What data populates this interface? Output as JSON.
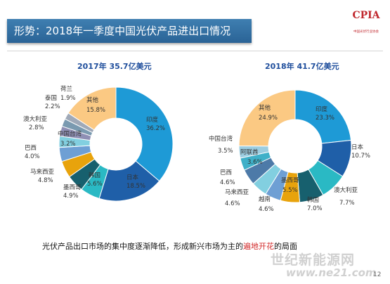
{
  "header": {
    "title": "形势：2018年一季度中国光伏产品进出口情况",
    "logo_text": "CPIA",
    "logo_subtitle": "中国光伏行业协会"
  },
  "chart_data": [
    {
      "type": "pie",
      "donut": true,
      "title": "2017年 35.7亿美元",
      "slices": [
        {
          "name": "印度",
          "value": 36.2,
          "label": "36.2%",
          "color": "#1e9ad6"
        },
        {
          "name": "日本",
          "value": 18.5,
          "label": "18.5%",
          "color": "#1f5fa8"
        },
        {
          "name": "韩国",
          "value": 5.6,
          "label": "5.6%",
          "color": "#2ab9c4"
        },
        {
          "name": "墨西哥",
          "value": 4.9,
          "label": "4.9%",
          "color": "#17606e"
        },
        {
          "name": "马来西亚",
          "value": 4.8,
          "label": "4.8%",
          "color": "#e8a30c"
        },
        {
          "name": "巴西",
          "value": 4.0,
          "label": "4.0%",
          "color": "#6e9fd4"
        },
        {
          "name": "中国台湾",
          "value": 3.2,
          "label": "3.2%",
          "color": "#82cfe0"
        },
        {
          "name": "澳大利亚",
          "value": 2.8,
          "label": "2.8%",
          "color": "#8f8fb4"
        },
        {
          "name": "泰国",
          "value": 2.2,
          "label": "2.2%",
          "color": "#7a9ab0"
        },
        {
          "name": "荷兰",
          "value": 1.9,
          "label": "1.9%",
          "color": "#9fa9b8"
        },
        {
          "name": "其他",
          "value": 15.8,
          "label": "15.8%",
          "color": "#fbc983"
        }
      ]
    },
    {
      "type": "pie",
      "donut": true,
      "title": "2018年 41.7亿美元",
      "slices": [
        {
          "name": "印度",
          "value": 23.3,
          "label": "23.3%",
          "color": "#1e9ad6"
        },
        {
          "name": "日本",
          "value": 10.7,
          "label": "10.7%",
          "color": "#1f5fa8"
        },
        {
          "name": "澳大利亚",
          "value": 7.7,
          "label": "7.7%",
          "color": "#2ab9c4"
        },
        {
          "name": "韩国",
          "value": 7.0,
          "label": "7.0%",
          "color": "#17606e"
        },
        {
          "name": "墨西哥",
          "value": 5.5,
          "label": "5.5%",
          "color": "#e8a30c"
        },
        {
          "name": "越南",
          "value": 4.6,
          "label": "4.6%",
          "color": "#6e9fd4"
        },
        {
          "name": "马来西亚",
          "value": 4.6,
          "label": "4.6%",
          "color": "#82cfe0"
        },
        {
          "name": "巴西",
          "value": 4.6,
          "label": "4.6%",
          "color": "#4d7aa8"
        },
        {
          "name": "阿联酋",
          "value": 3.6,
          "label": "3.6%",
          "color": "#3fb0c8"
        },
        {
          "name": "中国台湾",
          "value": 3.5,
          "label": "3.5%",
          "color": "#9ccde0"
        },
        {
          "name": "其他",
          "value": 24.9,
          "label": "24.9%",
          "color": "#fbc983"
        }
      ]
    }
  ],
  "conclusion": {
    "before": "光伏产品出口市场的集中度逐渐降低，形成新兴市场为主的",
    "highlight": "遍地开花",
    "after": "的局面",
    "highlight_color": "#d22a2a"
  },
  "page_number": "12",
  "watermark": {
    "text": "世纪新能源网",
    "url": "www.ne21.com"
  }
}
